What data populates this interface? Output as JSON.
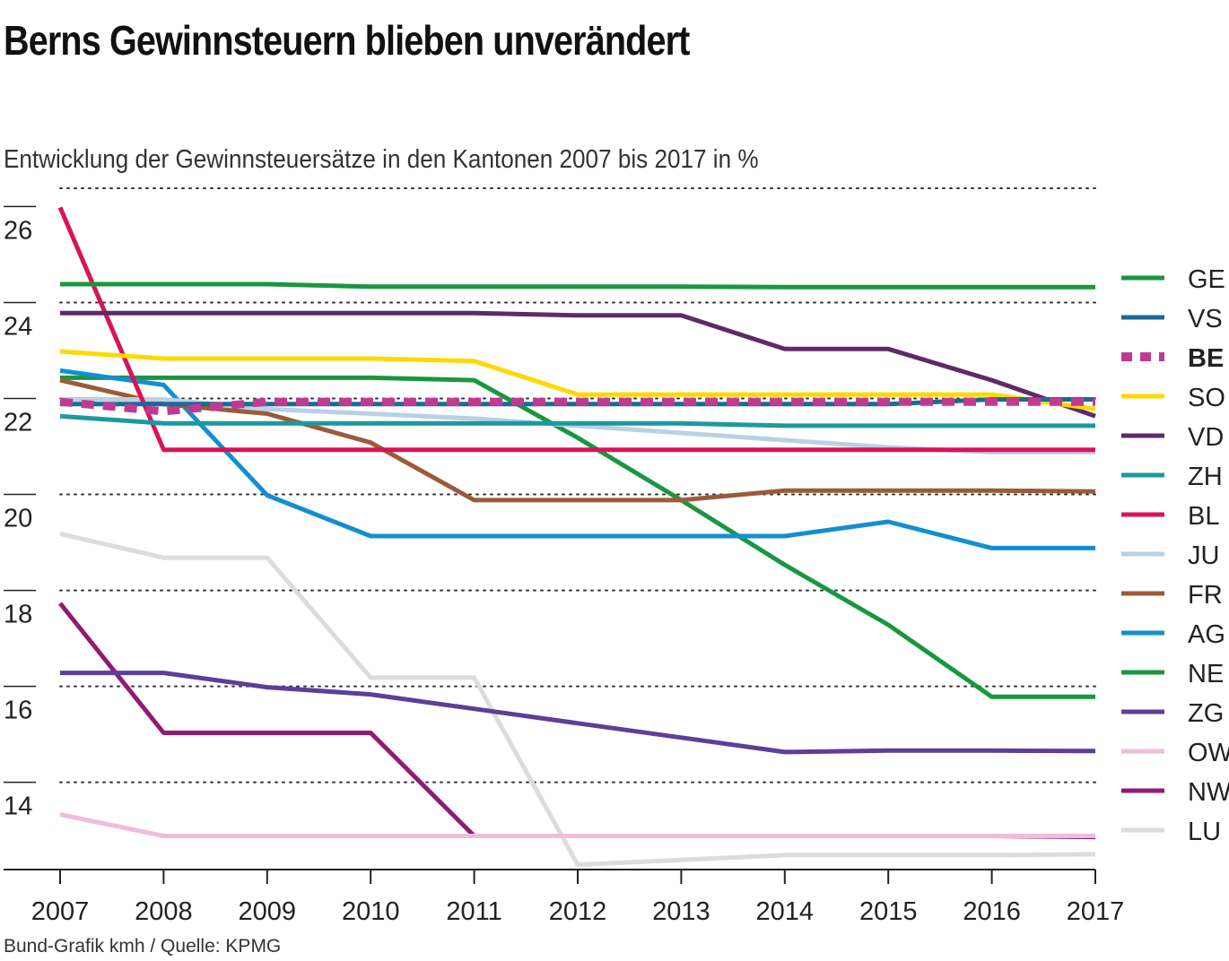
{
  "title": "Berns Gewinnsteuern blieben unverändert",
  "subtitle": "Entwicklung der Gewinnsteuersätze in den Kantonen 2007 bis 2017 in %",
  "source": "Bund-Grafik kmh / Quelle: KPMG",
  "chart_data": {
    "type": "line",
    "title": "Berns Gewinnsteuern blieben unverändert",
    "subtitle": "Entwicklung der Gewinnsteuersätze in den Kantonen 2007 bis 2017 in %",
    "xlabel": "",
    "ylabel": "",
    "x": [
      2007,
      2008,
      2009,
      2010,
      2011,
      2012,
      2013,
      2014,
      2015,
      2016,
      2017
    ],
    "x_tick_labels": [
      "2007",
      "2008",
      "2009",
      "2010",
      "2011",
      "2012",
      "2013",
      "2014",
      "2015",
      "2016",
      "2017"
    ],
    "y_ticks": [
      14,
      16,
      18,
      20,
      22,
      24,
      26
    ],
    "y_tick_labels": [
      "14",
      "16",
      "18",
      "20",
      "22",
      "24",
      "26"
    ],
    "ylim": [
      12.2,
      26.4
    ],
    "grid": "dotted horizontal",
    "legend_position": "right",
    "highlight": "BE",
    "series": [
      {
        "name": "GE",
        "color": "#1a9641",
        "values": [
          24.4,
          24.4,
          24.4,
          24.35,
          24.35,
          24.35,
          24.35,
          24.34,
          24.34,
          24.34,
          24.34
        ]
      },
      {
        "name": "VS",
        "color": "#1b6a96",
        "values": [
          21.9,
          21.9,
          21.9,
          21.9,
          21.9,
          21.9,
          21.9,
          21.9,
          21.9,
          22.0,
          22.0
        ]
      },
      {
        "name": "BE",
        "color": "#c13a92",
        "dashed": true,
        "values": [
          21.95,
          21.75,
          21.95,
          21.95,
          21.95,
          21.95,
          21.95,
          21.95,
          21.95,
          21.95,
          21.95
        ]
      },
      {
        "name": "SO",
        "color": "#ffd800",
        "values": [
          23.0,
          22.85,
          22.85,
          22.85,
          22.8,
          22.1,
          22.1,
          22.1,
          22.1,
          22.1,
          21.8
        ]
      },
      {
        "name": "VD",
        "color": "#5e2a67",
        "values": [
          23.8,
          23.8,
          23.8,
          23.8,
          23.8,
          23.75,
          23.75,
          23.05,
          23.05,
          22.4,
          21.65
        ]
      },
      {
        "name": "ZH",
        "color": "#1a9a9e",
        "values": [
          21.65,
          21.5,
          21.5,
          21.5,
          21.5,
          21.5,
          21.5,
          21.45,
          21.45,
          21.45,
          21.45
        ]
      },
      {
        "name": "BL",
        "color": "#d8135a",
        "values": [
          26.0,
          20.95,
          20.95,
          20.95,
          20.95,
          20.95,
          20.95,
          20.95,
          20.95,
          20.95,
          20.95
        ]
      },
      {
        "name": "JU",
        "color": "#b8d1e5",
        "values": [
          22.0,
          22.0,
          21.8,
          21.7,
          21.6,
          21.45,
          21.3,
          21.15,
          21.0,
          20.9,
          20.9
        ]
      },
      {
        "name": "FR",
        "color": "#9b5b3a",
        "values": [
          22.4,
          21.9,
          21.7,
          21.1,
          19.9,
          19.9,
          19.9,
          20.1,
          20.1,
          20.1,
          20.08
        ]
      },
      {
        "name": "AG",
        "color": "#138fcf",
        "values": [
          22.6,
          22.3,
          20.0,
          19.15,
          19.15,
          19.15,
          19.15,
          19.15,
          19.45,
          18.9,
          18.9
        ]
      },
      {
        "name": "NE",
        "color": "#1a9641",
        "values": [
          22.45,
          22.45,
          22.45,
          22.45,
          22.4,
          21.2,
          19.9,
          18.55,
          17.3,
          15.8,
          15.8
        ]
      },
      {
        "name": "ZG",
        "color": "#5b3f99",
        "values": [
          16.3,
          16.3,
          16.0,
          15.85,
          15.55,
          15.25,
          14.95,
          14.65,
          14.68,
          14.68,
          14.67
        ]
      },
      {
        "name": "OW",
        "color": "#efbdd9",
        "values": [
          13.35,
          12.9,
          12.9,
          12.9,
          12.9,
          12.9,
          12.9,
          12.9,
          12.9,
          12.9,
          12.9
        ]
      },
      {
        "name": "NW",
        "color": "#921a72",
        "values": [
          17.75,
          15.05,
          15.05,
          15.05,
          12.9,
          12.9,
          12.9,
          12.9,
          12.9,
          12.9,
          12.88
        ]
      },
      {
        "name": "LU",
        "color": "#dcdcdc",
        "values": [
          19.2,
          18.7,
          18.7,
          16.2,
          16.2,
          12.3,
          12.4,
          12.5,
          12.5,
          12.5,
          12.52
        ]
      }
    ]
  }
}
